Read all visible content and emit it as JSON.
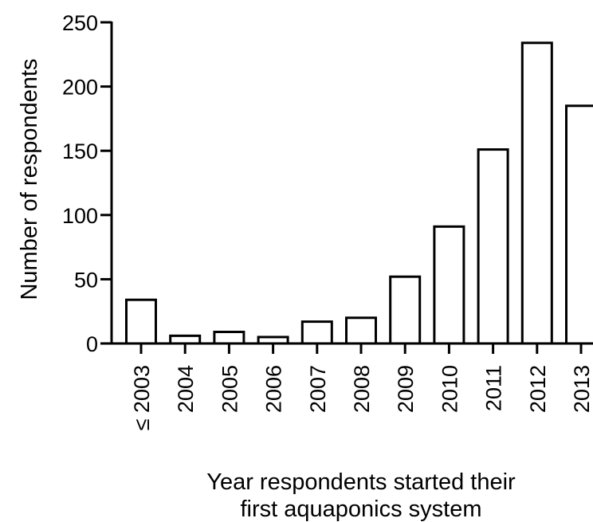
{
  "chart_data": {
    "type": "bar",
    "categories": [
      "≤ 2003",
      "2004",
      "2005",
      "2006",
      "2007",
      "2008",
      "2009",
      "2010",
      "2011",
      "2012",
      "2013"
    ],
    "values": [
      34,
      6,
      9,
      5,
      17,
      20,
      52,
      91,
      151,
      234,
      185
    ],
    "ylabel": "Number of respondents",
    "xlabel_line1": "Year respondents started their",
    "xlabel_line2": "first aquaponics system",
    "ylim": [
      0,
      250
    ],
    "yticks": [
      0,
      50,
      100,
      150,
      200,
      250
    ],
    "grid": false,
    "bar_fill": "#ffffff",
    "bar_stroke": "#000000"
  }
}
